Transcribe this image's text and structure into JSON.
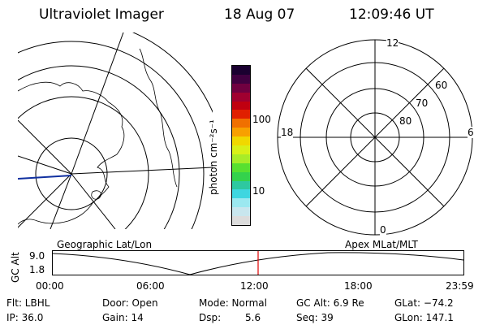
{
  "header": {
    "title": "Ultraviolet Imager",
    "date": "18 Aug 07",
    "time": "12:09:46 UT"
  },
  "geo_map": {
    "caption": "Geographic Lat/Lon"
  },
  "colorbar": {
    "unit_label": "photon cm⁻²s⁻¹",
    "tick_100": "100",
    "tick_10": "10",
    "colors": [
      "#dcdcdc",
      "#c8e6ee",
      "#9be8f0",
      "#3fd6e0",
      "#2ec8a0",
      "#34d24c",
      "#58e030",
      "#a8ec28",
      "#d8f018",
      "#f0d800",
      "#f8a000",
      "#f07000",
      "#e02000",
      "#c00010",
      "#a00030",
      "#700040",
      "#400040",
      "#1a0030"
    ]
  },
  "polar_plot": {
    "caption": "Apex MLat/MLT",
    "labels": {
      "top": "12",
      "left": "18",
      "right": "6",
      "bottom": "0"
    },
    "rings": [
      "60",
      "70",
      "80"
    ]
  },
  "timeline": {
    "ylabel": "GC Alt",
    "y_ticks": [
      "9.0",
      "1.8"
    ],
    "x_ticks": [
      "00:00",
      "06:00",
      "12:00",
      "18:00",
      "23:59"
    ],
    "current_time_marker_color": "#e00000"
  },
  "status": {
    "flt": "Flt: LBHL",
    "ip": "IP: 36.0",
    "door": "Door: Open",
    "gain": "Gain: 14",
    "mode": "Mode: Normal",
    "dsp_label": "Dsp:",
    "dsp_value": "5.6",
    "gcalt": "GC Alt: 6.9 Re",
    "seq": "Seq: 39",
    "glat": "GLat: −74.2",
    "glon": "GLon: 147.1"
  }
}
